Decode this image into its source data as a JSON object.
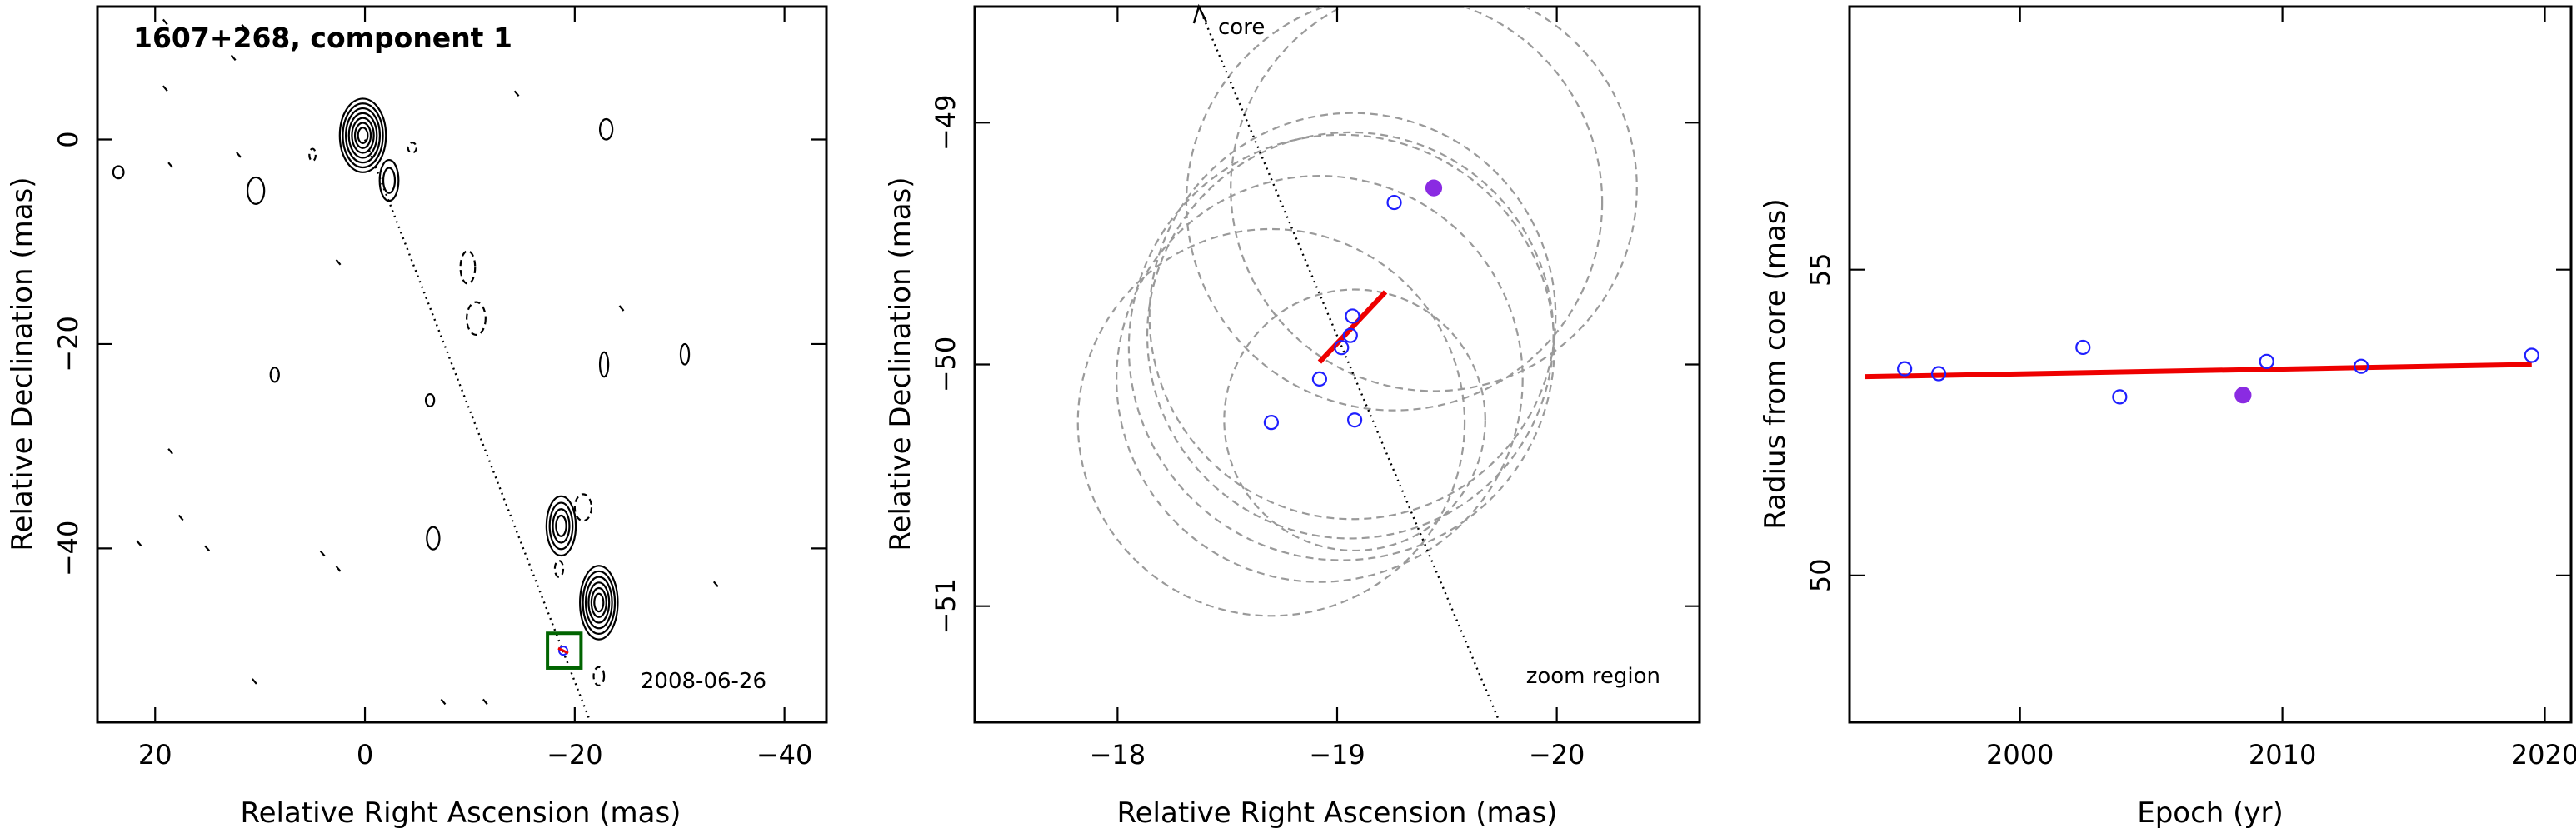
{
  "chart_data": [
    {
      "type": "contour",
      "title": "1607+268, component 1",
      "xlabel": "Relative Right Ascension (mas)",
      "ylabel": "Relative Declination (mas)",
      "xlim": [
        25.5,
        -44
      ],
      "ylim": [
        -57,
        13
      ],
      "x_ticks": [
        20,
        0,
        -20,
        -40
      ],
      "x_tick_labels": [
        "20",
        "0",
        "−20",
        "−40"
      ],
      "y_ticks": [
        0,
        -20,
        -40
      ],
      "y_tick_labels": [
        "0",
        "−20",
        "−40"
      ],
      "date": "2008-06-26",
      "jet_axis_line": [
        [
          0,
          0
        ],
        [
          -21.5,
          -57
        ]
      ],
      "zoom_box": {
        "x": [
          -17.4,
          -20.6
        ],
        "y": [
          -48.3,
          -51.7
        ]
      },
      "marker": {
        "x": -18.9,
        "y": -50.0
      },
      "components": [
        {
          "x": 0.2,
          "y": 0.4,
          "rx": 2.2,
          "ry": 3.6,
          "levels": 7
        },
        {
          "x": -2.3,
          "y": -4.0,
          "rx": 0.9,
          "ry": 2.0,
          "levels": 2
        },
        {
          "x": -18.7,
          "y": -37.8,
          "rx": 1.4,
          "ry": 2.9,
          "levels": 4
        },
        {
          "x": -22.3,
          "y": -45.3,
          "rx": 1.8,
          "ry": 3.6,
          "levels": 6
        },
        {
          "x": 10.4,
          "y": -5.0,
          "rx": 0.8,
          "ry": 1.3,
          "levels": 1
        },
        {
          "x": -23.0,
          "y": 1.0,
          "rx": 0.6,
          "ry": 1.0,
          "levels": 1
        },
        {
          "x": -22.8,
          "y": -22.0,
          "rx": 0.4,
          "ry": 1.2,
          "levels": 1
        },
        {
          "x": -30.5,
          "y": -21.0,
          "rx": 0.4,
          "ry": 1.0,
          "levels": 1
        },
        {
          "x": -6.5,
          "y": -39.0,
          "rx": 0.6,
          "ry": 1.1,
          "levels": 1
        },
        {
          "x": 8.6,
          "y": -23.0,
          "rx": 0.4,
          "ry": 0.7,
          "levels": 1
        },
        {
          "x": 23.5,
          "y": -3.2,
          "rx": 0.5,
          "ry": 0.6,
          "levels": 1
        },
        {
          "x": -6.2,
          "y": -25.5,
          "rx": 0.4,
          "ry": 0.6,
          "levels": 1
        }
      ],
      "negative_contours": [
        {
          "x": -9.8,
          "y": -12.5,
          "rx": 0.7,
          "ry": 1.6
        },
        {
          "x": -10.6,
          "y": -17.5,
          "rx": 0.9,
          "ry": 1.6
        },
        {
          "x": -20.8,
          "y": -36.0,
          "rx": 0.8,
          "ry": 1.3
        },
        {
          "x": -22.3,
          "y": -52.5,
          "rx": 0.5,
          "ry": 0.9
        },
        {
          "x": -18.5,
          "y": -42.0,
          "rx": 0.4,
          "ry": 0.8
        },
        {
          "x": 5.0,
          "y": -1.5,
          "rx": 0.3,
          "ry": 0.6
        },
        {
          "x": -4.5,
          "y": -0.8,
          "rx": 0.4,
          "ry": 0.5
        }
      ],
      "noise_specks": [
        [
          19.0,
          11.5
        ],
        [
          11.5,
          11.0
        ],
        [
          19.0,
          5.0
        ],
        [
          12.5,
          8.0
        ],
        [
          -14.5,
          4.5
        ],
        [
          18.5,
          -2.5
        ],
        [
          12.0,
          -1.5
        ],
        [
          2.5,
          -12.0
        ],
        [
          -24.5,
          -16.5
        ],
        [
          18.5,
          -30.5
        ],
        [
          21.5,
          -39.5
        ],
        [
          17.5,
          -37.0
        ],
        [
          15.0,
          -40.0
        ],
        [
          4.0,
          -40.5
        ],
        [
          2.5,
          -42.0
        ],
        [
          -11.5,
          -55.0
        ],
        [
          -33.5,
          -43.5
        ],
        [
          10.5,
          -53.0
        ],
        [
          -7.5,
          -55.0
        ]
      ]
    },
    {
      "type": "scatter",
      "title": "",
      "xlabel": "Relative Right Ascension (mas)",
      "ylabel": "Relative Declination (mas)",
      "xlim": [
        -17.35,
        -20.65
      ],
      "ylim": [
        -51.48,
        -48.52
      ],
      "x_ticks": [
        -18,
        -19,
        -20
      ],
      "x_tick_labels": [
        "−18",
        "−19",
        "−20"
      ],
      "y_ticks": [
        -49,
        -50,
        -51
      ],
      "y_tick_labels": [
        "−49",
        "−50",
        "−51"
      ],
      "annotations": {
        "core_label": "core",
        "zoom_label": "zoom region"
      },
      "jet_axis_line": [
        [
          -18.37,
          -48.52
        ],
        [
          -19.74,
          -51.48
        ]
      ],
      "points": [
        {
          "x": -18.7,
          "y": -50.24,
          "filled": false
        },
        {
          "x": -18.92,
          "y": -50.06,
          "filled": false
        },
        {
          "x": -19.02,
          "y": -49.93,
          "filled": false
        },
        {
          "x": -19.06,
          "y": -49.88,
          "filled": false
        },
        {
          "x": -19.07,
          "y": -49.8,
          "filled": false
        },
        {
          "x": -19.08,
          "y": -50.23,
          "filled": false
        },
        {
          "x": -19.26,
          "y": -49.33,
          "filled": false
        },
        {
          "x": -19.44,
          "y": -49.27,
          "filled": true
        }
      ],
      "motion_vector": [
        [
          -18.92,
          -49.99
        ],
        [
          -19.22,
          -49.7
        ]
      ],
      "error_circles": [
        {
          "x": -19.44,
          "y": -49.27,
          "r": 0.84
        },
        {
          "x": -19.26,
          "y": -49.33,
          "r": 0.86
        },
        {
          "x": -19.07,
          "y": -49.8,
          "r": 0.84
        },
        {
          "x": -19.06,
          "y": -49.88,
          "r": 0.84
        },
        {
          "x": -19.02,
          "y": -49.93,
          "r": 0.88
        },
        {
          "x": -18.92,
          "y": -50.06,
          "r": 0.84
        },
        {
          "x": -18.7,
          "y": -50.24,
          "r": 0.8
        },
        {
          "x": -19.08,
          "y": -50.23,
          "r": 0.54
        }
      ]
    },
    {
      "type": "scatter",
      "title": "",
      "xlabel": "Epoch (yr)",
      "ylabel": "Radius from core (mas)",
      "xlim": [
        1993.5,
        2021.0
      ],
      "ylim": [
        47.6,
        59.3
      ],
      "x_ticks": [
        2000,
        2010,
        2020
      ],
      "x_tick_labels": [
        "2000",
        "2010",
        "2020"
      ],
      "y_ticks": [
        50,
        55
      ],
      "y_tick_labels": [
        "50",
        "55"
      ],
      "points": [
        {
          "x": 1995.6,
          "y": 53.38,
          "filled": false
        },
        {
          "x": 1996.9,
          "y": 53.3,
          "filled": false
        },
        {
          "x": 2002.4,
          "y": 53.73,
          "filled": false
        },
        {
          "x": 2003.8,
          "y": 52.92,
          "filled": false
        },
        {
          "x": 2008.5,
          "y": 52.95,
          "filled": true
        },
        {
          "x": 2009.4,
          "y": 53.5,
          "filled": false
        },
        {
          "x": 2013.0,
          "y": 53.42,
          "filled": false
        },
        {
          "x": 2019.5,
          "y": 53.6,
          "filled": false
        }
      ],
      "fit_line": [
        [
          1994.1,
          53.25
        ],
        [
          2019.5,
          53.45
        ]
      ]
    }
  ],
  "colors": {
    "open_marker": "#1f1fff",
    "filled_marker": "#8a2be2",
    "fit_line": "#ee0000",
    "error_circle": "#9a9a9a",
    "zoom_box": "#006400",
    "axes": "#000000"
  }
}
